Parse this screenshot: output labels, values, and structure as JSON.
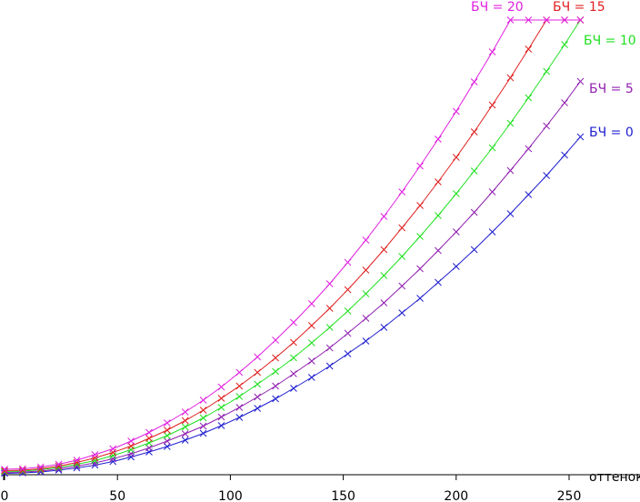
{
  "chart_data": {
    "type": "line",
    "x_label": "оттенок",
    "x": [
      0,
      8,
      16,
      24,
      32,
      40,
      48,
      56,
      64,
      72,
      80,
      88,
      96,
      104,
      112,
      120,
      128,
      136,
      144,
      152,
      160,
      168,
      176,
      184,
      192,
      200,
      208,
      216,
      224,
      232,
      240,
      248,
      255
    ],
    "xlim": [
      0,
      255
    ],
    "xticks": [
      0,
      50,
      100,
      150,
      200,
      250
    ],
    "ylim": [
      0,
      100
    ],
    "series": [
      {
        "name": "БЧ = 0",
        "color": "#2020d0",
        "values": [
          0.3,
          0.4,
          0.6,
          1.0,
          1.5,
          2.1,
          2.9,
          3.9,
          5.0,
          6.2,
          7.6,
          9.1,
          10.8,
          12.6,
          14.6,
          16.7,
          19.0,
          21.4,
          23.9,
          26.6,
          29.4,
          32.4,
          35.6,
          38.8,
          42.3,
          45.8,
          49.5,
          53.4,
          57.4,
          61.6,
          65.8,
          70.3,
          74.3
        ]
      },
      {
        "name": "БЧ = 5",
        "color": "#9020b0",
        "values": [
          0.5,
          0.6,
          0.8,
          1.3,
          1.9,
          2.6,
          3.5,
          4.6,
          5.9,
          7.4,
          9.0,
          10.7,
          12.7,
          14.8,
          17.1,
          19.5,
          22.2,
          25.0,
          27.9,
          31.1,
          34.4,
          37.8,
          41.5,
          45.3,
          49.3,
          53.4,
          57.7,
          62.2,
          66.9,
          71.7,
          76.7,
          81.8,
          86.5
        ]
      },
      {
        "name": "БЧ = 10",
        "color": "#20e020",
        "values": [
          0.7,
          0.8,
          1.1,
          1.6,
          2.3,
          3.1,
          4.2,
          5.5,
          7.0,
          8.6,
          10.5,
          12.5,
          14.8,
          17.2,
          19.9,
          22.7,
          25.7,
          29.0,
          32.4,
          36.0,
          39.8,
          43.8,
          48.0,
          52.4,
          57.0,
          61.8,
          66.8,
          71.9,
          77.3,
          82.9,
          88.7,
          94.6,
          100
        ]
      },
      {
        "name": "БЧ = 15",
        "color": "#e02020",
        "values": [
          0.9,
          1.0,
          1.3,
          1.9,
          2.7,
          3.7,
          4.9,
          6.3,
          8.0,
          9.8,
          11.9,
          14.2,
          16.8,
          19.5,
          22.5,
          25.7,
          29.1,
          32.8,
          36.6,
          40.7,
          45.0,
          49.5,
          54.3,
          59.2,
          64.4,
          69.8,
          75.4,
          81.3,
          87.3,
          93.6,
          100,
          100,
          100
        ]
      },
      {
        "name": "БЧ = 20",
        "color": "#e020e0",
        "values": [
          1.2,
          1.3,
          1.7,
          2.3,
          3.2,
          4.4,
          5.7,
          7.4,
          9.3,
          11.4,
          13.8,
          16.4,
          19.3,
          22.5,
          25.9,
          29.6,
          33.5,
          37.6,
          42.0,
          46.7,
          51.6,
          56.8,
          62.2,
          67.9,
          73.8,
          79.9,
          86.4,
          93.0,
          100,
          100,
          100,
          100,
          100
        ]
      }
    ]
  }
}
